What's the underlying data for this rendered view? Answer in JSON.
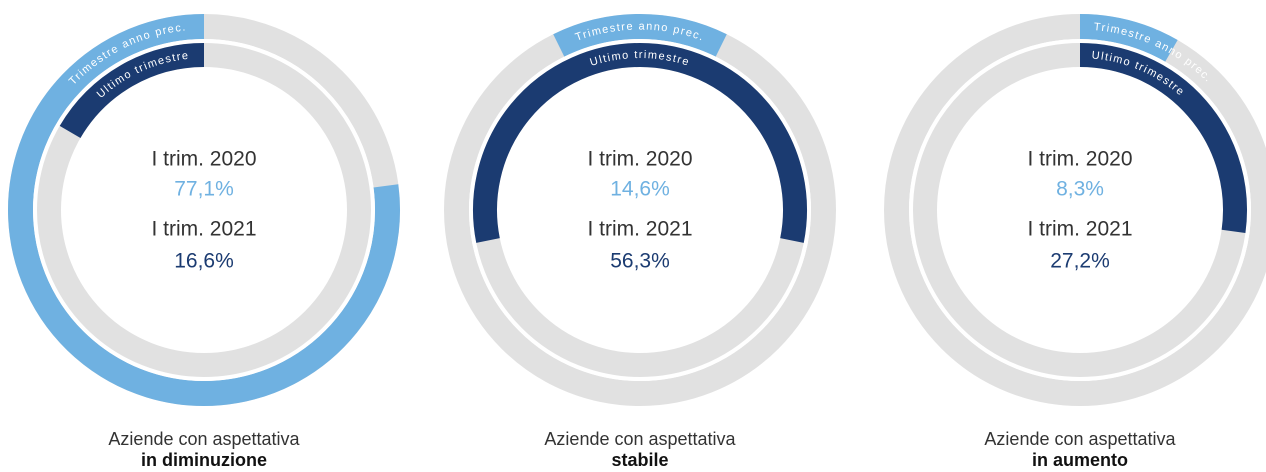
{
  "chart_data": [
    {
      "type": "donut",
      "direction": "counterclockwise",
      "title": "Aziende con aspettativa",
      "subtitle": "in diminuzione",
      "series": [
        {
          "name": "Trimestre anno prec.",
          "period": "I trim. 2020",
          "color": "#6fb1e1",
          "value": 77.1,
          "value_label": "77,1%"
        },
        {
          "name": "Ultimo trimestre",
          "period": "I trim. 2021",
          "color": "#1b3b71",
          "value": 16.6,
          "value_label": "16,6%"
        }
      ]
    },
    {
      "type": "donut",
      "direction": "centered",
      "title": "Aziende con aspettativa",
      "subtitle": "stabile",
      "series": [
        {
          "name": "Trimestre anno prec.",
          "period": "I trim. 2020",
          "color": "#6fb1e1",
          "value": 14.6,
          "value_label": "14,6%"
        },
        {
          "name": "Ultimo trimestre",
          "period": "I trim. 2021",
          "color": "#1b3b71",
          "value": 56.3,
          "value_label": "56,3%"
        }
      ]
    },
    {
      "type": "donut",
      "direction": "clockwise",
      "title": "Aziende con aspettativa",
      "subtitle": "in aumento",
      "series": [
        {
          "name": "Trimestre anno prec.",
          "period": "I trim. 2020",
          "color": "#6fb1e1",
          "value": 8.3,
          "value_label": "8,3%"
        },
        {
          "name": "Ultimo trimestre",
          "period": "I trim. 2021",
          "color": "#1b3b71",
          "value": 27.2,
          "value_label": "27,2%"
        }
      ]
    }
  ]
}
